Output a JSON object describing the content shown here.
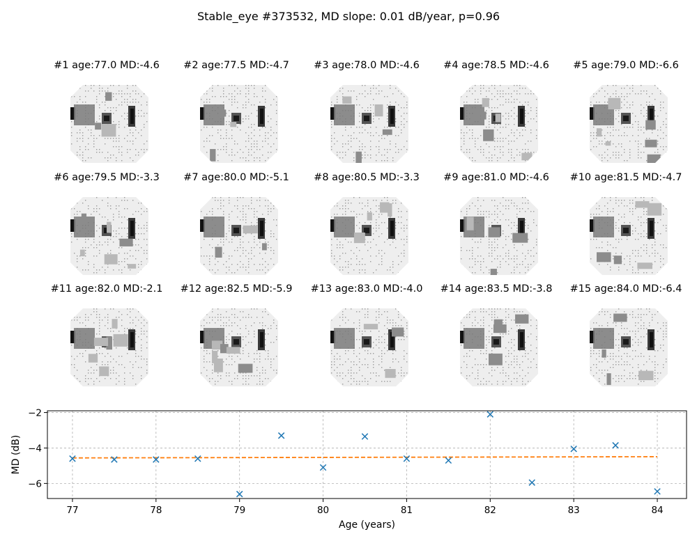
{
  "figure": {
    "title": "Stable_eye #373532, MD slope: 0.01 dB/year, p=0.96"
  },
  "visual_fields": [
    {
      "label": "#1 age:77.0 MD:-4.6"
    },
    {
      "label": "#2 age:77.5 MD:-4.7"
    },
    {
      "label": "#3 age:78.0 MD:-4.6"
    },
    {
      "label": "#4 age:78.5 MD:-4.6"
    },
    {
      "label": "#5 age:79.0 MD:-6.6"
    },
    {
      "label": "#6 age:79.5 MD:-3.3"
    },
    {
      "label": "#7 age:80.0 MD:-5.1"
    },
    {
      "label": "#8 age:80.5 MD:-3.3"
    },
    {
      "label": "#9 age:81.0 MD:-4.6"
    },
    {
      "label": "#10 age:81.5 MD:-4.7"
    },
    {
      "label": "#11 age:82.0 MD:-2.1"
    },
    {
      "label": "#12 age:82.5 MD:-5.9"
    },
    {
      "label": "#13 age:83.0 MD:-4.0"
    },
    {
      "label": "#14 age:83.5 MD:-3.8"
    },
    {
      "label": "#15 age:84.0 MD:-6.4"
    }
  ],
  "chart_data": {
    "type": "scatter",
    "title": "",
    "xlabel": "Age (years)",
    "ylabel": "MD (dB)",
    "xlim": [
      76.7,
      84.35
    ],
    "ylim": [
      -6.85,
      -1.9
    ],
    "xticks": [
      77,
      78,
      79,
      80,
      81,
      82,
      83,
      84
    ],
    "xtick_labels": [
      "77",
      "78",
      "79",
      "80",
      "81",
      "82",
      "83",
      "84"
    ],
    "yticks": [
      -6,
      -4,
      -2
    ],
    "ytick_labels": [
      "−6",
      "−4",
      "−2"
    ],
    "grid": true,
    "series": [
      {
        "marker": "x",
        "color": "#1f77b4",
        "x": [
          77.0,
          77.5,
          78.0,
          78.5,
          79.0,
          79.5,
          80.0,
          80.5,
          81.0,
          81.5,
          82.0,
          82.5,
          83.0,
          83.5,
          84.0
        ],
        "y": [
          -4.6,
          -4.65,
          -4.65,
          -4.6,
          -6.6,
          -3.3,
          -5.1,
          -3.35,
          -4.6,
          -4.7,
          -2.1,
          -5.95,
          -4.05,
          -3.85,
          -6.45
        ]
      },
      {
        "line_style": "dashed",
        "color": "#ff7f0e",
        "x": [
          77.0,
          84.0
        ],
        "y": [
          -4.56,
          -4.49
        ]
      }
    ]
  }
}
